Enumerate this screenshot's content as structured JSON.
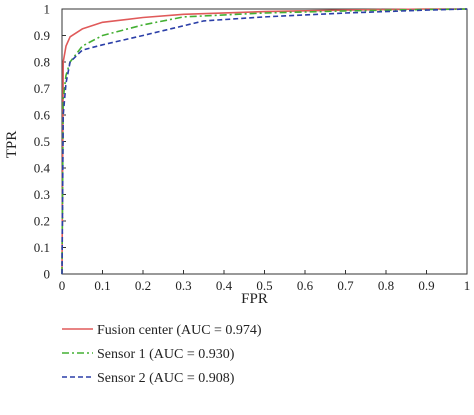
{
  "chart_data": {
    "type": "line",
    "title": "",
    "xlabel": "FPR",
    "ylabel": "TPR",
    "xlim": [
      0,
      1
    ],
    "ylim": [
      0,
      1
    ],
    "x_ticks": [
      "0",
      "0.1",
      "0.2",
      "0.3",
      "0.4",
      "0.5",
      "0.6",
      "0.7",
      "0.8",
      "0.9",
      "1"
    ],
    "y_ticks": [
      "0",
      "0.1",
      "0.2",
      "0.3",
      "0.4",
      "0.5",
      "0.6",
      "0.7",
      "0.8",
      "0.9",
      "1"
    ],
    "grid": false,
    "legend_position": "bottom",
    "series": [
      {
        "name": "Fusion center (AUC = 0.974)",
        "color": "#e05a5a",
        "dash": "solid",
        "x": [
          0,
          0.003,
          0.01,
          0.02,
          0.05,
          0.1,
          0.2,
          0.3,
          0.5,
          0.7,
          0.9,
          1
        ],
        "y": [
          0,
          0.8,
          0.86,
          0.895,
          0.925,
          0.95,
          0.968,
          0.98,
          0.99,
          0.996,
          1,
          1
        ]
      },
      {
        "name": "Sensor 1 (AUC = 0.930)",
        "color": "#44b033",
        "dash": "dashdot",
        "x": [
          0,
          0.003,
          0.01,
          0.02,
          0.05,
          0.1,
          0.2,
          0.3,
          0.5,
          0.7,
          0.9,
          1
        ],
        "y": [
          0,
          0.66,
          0.75,
          0.8,
          0.86,
          0.9,
          0.94,
          0.97,
          0.985,
          0.993,
          0.998,
          1
        ]
      },
      {
        "name": "Sensor 2 (AUC = 0.908)",
        "color": "#2b3fa8",
        "dash": "dashed",
        "x": [
          0,
          0.003,
          0.01,
          0.02,
          0.05,
          0.1,
          0.2,
          0.35,
          0.5,
          0.7,
          0.9,
          1
        ],
        "y": [
          0,
          0.6,
          0.72,
          0.8,
          0.845,
          0.865,
          0.9,
          0.955,
          0.97,
          0.985,
          0.996,
          1
        ]
      }
    ]
  }
}
